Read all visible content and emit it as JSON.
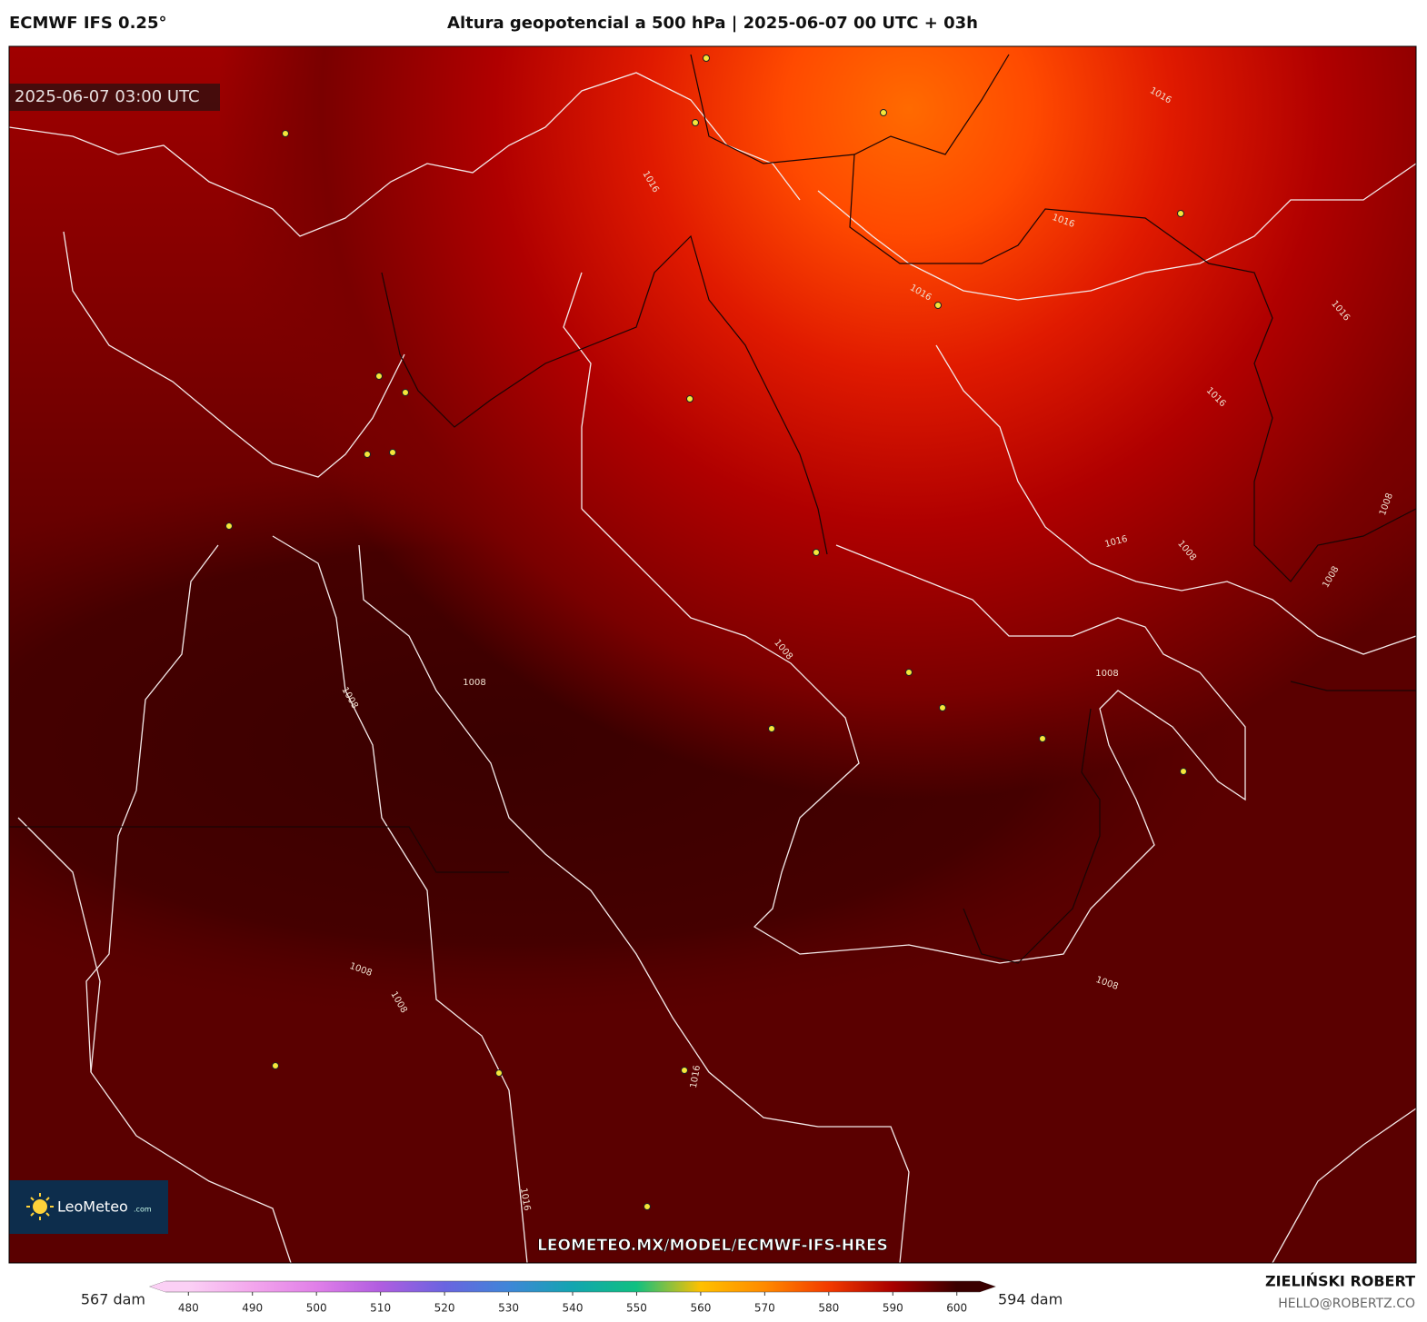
{
  "header": {
    "model": "ECMWF IFS 0.25°",
    "title": "Altura geopotencial a 500 hPa | 2025-06-07 00 UTC + 03h"
  },
  "map": {
    "timestamp": "2025-06-07 03:00 UTC",
    "watermark": "LEOMETEO.MX/MODEL/ECMWF-IFS-HRES",
    "logo": {
      "name": "LeoMeteo",
      "suffix": ".com"
    },
    "contour_labels": [
      "1016",
      "1016",
      "1016",
      "1016",
      "1016",
      "1016",
      "1008",
      "1016",
      "1008",
      "1008",
      "1008",
      "1008",
      "1008",
      "1008",
      "1008",
      "1008",
      "1008",
      "1016",
      "1016"
    ]
  },
  "colorbar": {
    "min_label": "567 dam",
    "max_label": "594 dam",
    "lim": [
      474,
      606
    ],
    "ticks": [
      480,
      490,
      500,
      510,
      520,
      530,
      540,
      550,
      560,
      570,
      580,
      590,
      600
    ],
    "colors": [
      "#fbd0f5",
      "#f3a6ec",
      "#e07fe8",
      "#b05de0",
      "#6a64e0",
      "#3f86d8",
      "#13a5b0",
      "#10c080",
      "#ffc000",
      "#ff8a00",
      "#f23a00",
      "#a80000",
      "#3a0000"
    ]
  },
  "footer": {
    "author": "ZIELIŃSKI ROBERT",
    "email": "HELLO@ROBERTZ.CO"
  }
}
